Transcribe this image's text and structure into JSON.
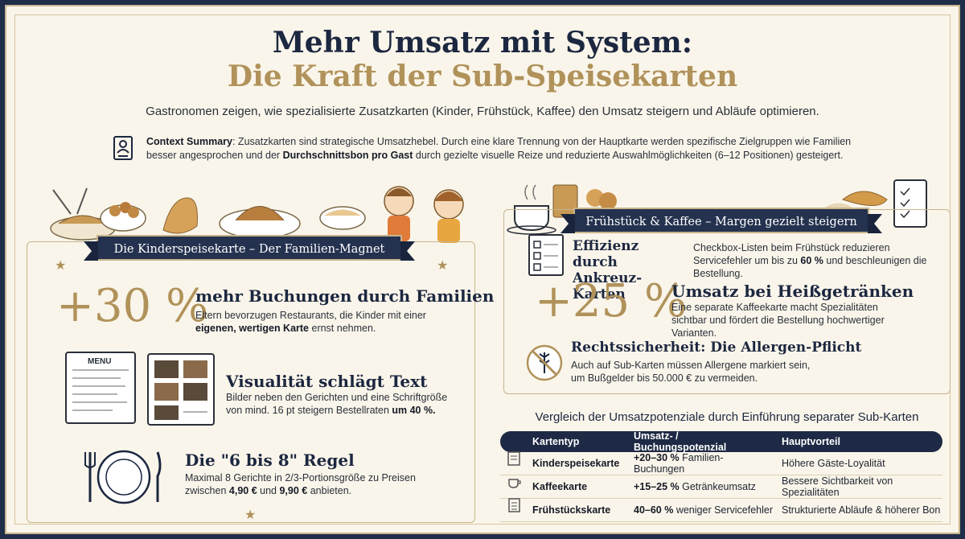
{
  "header": {
    "title_line1": "Mehr Umsatz mit System:",
    "title_line2": "Die Kraft der Sub-Speisekarten",
    "subtitle": "Gastronomen zeigen, wie spezialisierte Zusatzkarten (Kinder, Frühstück, Kaffee) den Umsatz steigern und Abläufe optimieren."
  },
  "context": {
    "label": "Context Summary",
    "text_a": ": Zusatzkarten sind strategische Umsatzhebel. Durch eine klare Trennung von der Hauptkarte werden spezifische Zielgruppen wie Familien besser angesprochen und der ",
    "bold": "Durchschnittsbon pro Gast",
    "text_b": " durch gezielte visuelle Reize und reduzierte Auswahlmöglichkeiten (6–12 Positionen) gesteigert."
  },
  "kids": {
    "banner": "Die Kinderspeisekarte – Der Familien-Magnet",
    "stat_value": "+30 %",
    "stat_title": "mehr Buchungen durch Familien",
    "stat_text_a": "Eltern bevorzugen Restaurants, die Kinder mit einer ",
    "stat_text_bold": "eigenen, wertigen Karte",
    "stat_text_b": " ernst nehmen.",
    "menu_label": "MENU",
    "visual_title": "Visualität schlägt Text",
    "visual_text_a": "Bilder neben den Gerichten und eine Schriftgröße von mind. 16 pt steigern Bestellraten ",
    "visual_text_bold": "um 40 %.",
    "rule_title": "Die \"6 bis 8\" Regel",
    "rule_text_a": "Maximal 8 Gerichte in 2/3-Portionsgröße zu Preisen zwischen ",
    "rule_price1": "4,90 €",
    "rule_and": " und ",
    "rule_price2": "9,90 €",
    "rule_text_b": " anbieten."
  },
  "breakfast": {
    "banner": "Frühstück & Kaffee – Margen gezielt steigern",
    "eff_title": "Effizienz durch Ankreuz-Karten",
    "eff_text_a": "Checkbox-Listen beim Frühstück reduzieren Servicefehler um bis zu ",
    "eff_bold": "60 %",
    "eff_text_b": " und beschleunigen die Bestellung.",
    "stat_value": "+25 %",
    "stat_title": "Umsatz bei Heißgetränken",
    "stat_text": "Eine separate Kaffeekarte macht Spezialitäten sichtbar und fördert die Bestellung hochwertiger Varianten.",
    "allergen_title": "Rechtssicherheit: Die Allergen-Pflicht",
    "allergen_text": "Auch auf Sub-Karten müssen Allergene markiert sein, um Bußgelder bis 50.000 € zu vermeiden."
  },
  "comparison": {
    "title": "Vergleich der Umsatzpotenziale durch Einführung separater Sub-Karten",
    "headers": [
      "Kartentyp",
      "Umsatz- / Buchungspotenzial",
      "Hauptvorteil"
    ],
    "rows": [
      {
        "type": "Kinderspeisekarte",
        "potential_bold": "+20–30 %",
        "potential_rest": " Familien-Buchungen",
        "benefit": "Höhere Gäste-Loyalität",
        "icon": "kids-menu-icon"
      },
      {
        "type": "Kaffeekarte",
        "potential_bold": "+15–25 %",
        "potential_rest": " Getränkeumsatz",
        "benefit": "Bessere Sichtbarkeit von Spezialitäten",
        "icon": "coffee-cup-icon"
      },
      {
        "type": "Frühstückskarte",
        "potential_bold": "40–60 %",
        "potential_rest": " weniger Servicefehler",
        "benefit": "Strukturierte Abläufe & höherer Bon",
        "icon": "checklist-icon"
      }
    ]
  },
  "colors": {
    "navy": "#1c2740",
    "gold": "#b0925a",
    "paper": "#faf5ea"
  }
}
